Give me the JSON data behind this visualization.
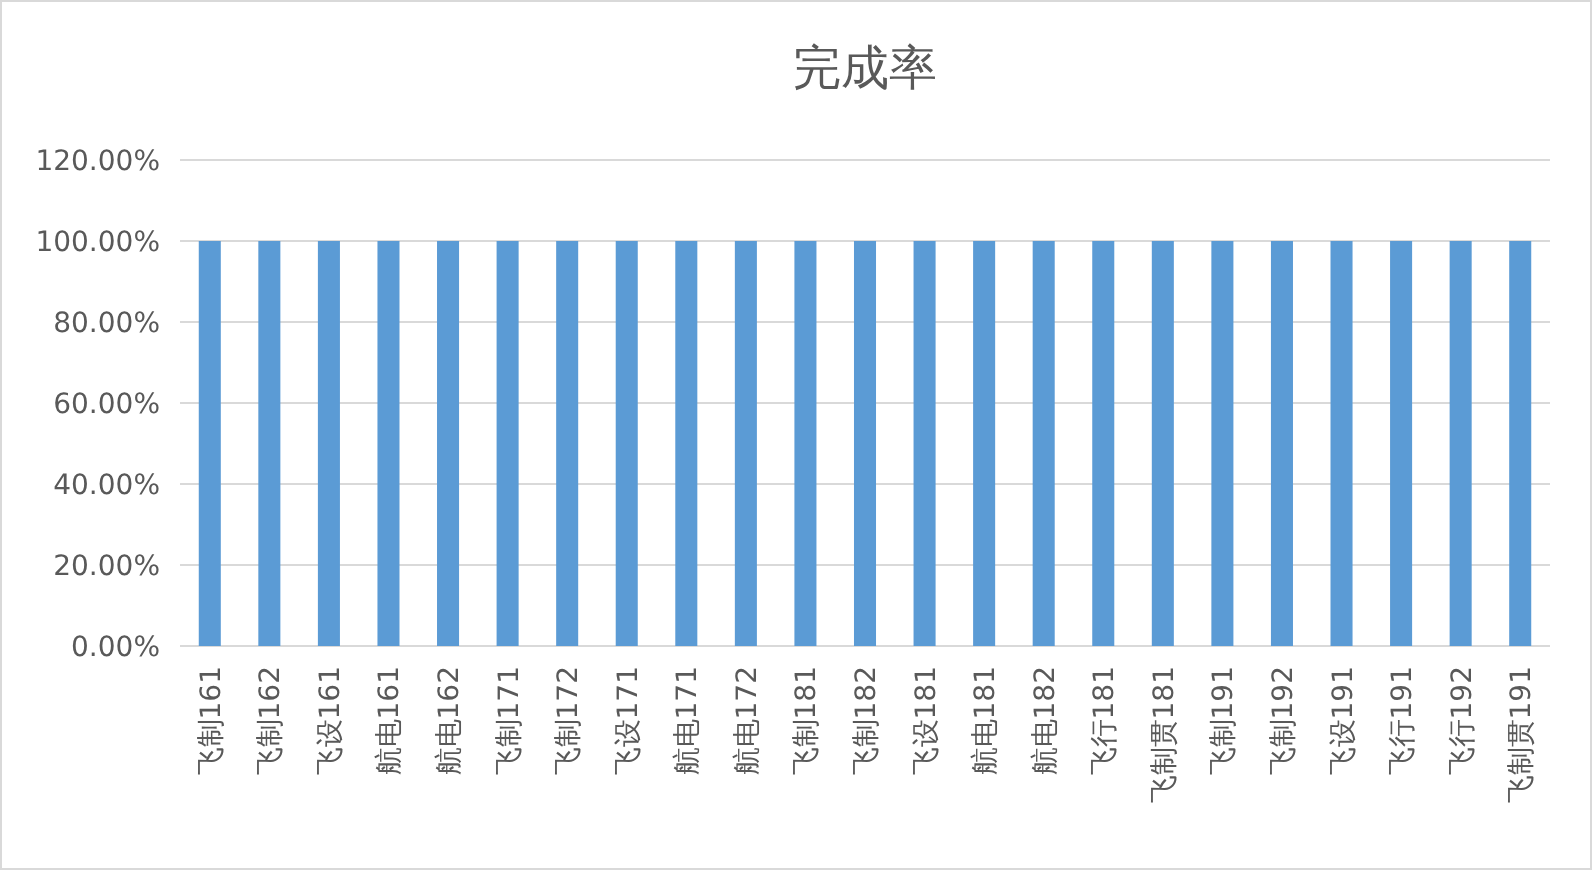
{
  "chart_data": {
    "type": "bar",
    "title": "完成率",
    "categories": [
      "飞制161",
      "飞制162",
      "飞设161",
      "航电161",
      "航电162",
      "飞制171",
      "飞制172",
      "飞设171",
      "航电171",
      "航电172",
      "飞制181",
      "飞制182",
      "飞设181",
      "航电181",
      "航电182",
      "飞行181",
      "飞制贯181",
      "飞制191",
      "飞制192",
      "飞设191",
      "飞行191",
      "飞行192",
      "飞制贯191"
    ],
    "values": [
      100,
      100,
      100,
      100,
      100,
      100,
      100,
      100,
      100,
      100,
      100,
      100,
      100,
      100,
      100,
      100,
      100,
      100,
      100,
      100,
      100,
      100,
      100
    ],
    "color": "#5b9bd5",
    "ylim": [
      0,
      120
    ],
    "yticks": [
      {
        "value": 0,
        "label": "0.00%"
      },
      {
        "value": 20,
        "label": "20.00%"
      },
      {
        "value": 40,
        "label": "40.00%"
      },
      {
        "value": 60,
        "label": "60.00%"
      },
      {
        "value": 80,
        "label": "80.00%"
      },
      {
        "value": 100,
        "label": "100.00%"
      },
      {
        "value": 120,
        "label": "120.00%"
      }
    ],
    "grid": "y"
  }
}
